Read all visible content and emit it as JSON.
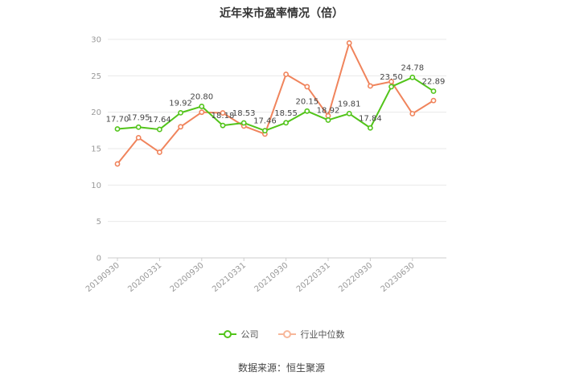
{
  "chart_data": {
    "type": "line",
    "title": "近年来市盈率情况（倍）",
    "x_tick_labels": [
      "20190930",
      "20200331",
      "20200930",
      "20210331",
      "20210930",
      "20220331",
      "20220930",
      "20230630"
    ],
    "ylim": [
      0,
      30
    ],
    "yticks": [
      0,
      5,
      10,
      15,
      20,
      25,
      30
    ],
    "grid": true,
    "legend_position": "bottom",
    "series": [
      {
        "name": "公司",
        "color": "#52c41a",
        "values": [
          17.7,
          17.95,
          17.64,
          19.92,
          20.8,
          18.18,
          18.53,
          17.46,
          18.55,
          20.15,
          18.92,
          19.81,
          17.84,
          23.5,
          24.78,
          22.89
        ],
        "labels": [
          "17.70",
          "17.95",
          "17.64",
          "19.92",
          "20.80",
          "18.18",
          "18.53",
          "17.46",
          "18.55",
          "20.15",
          "18.92",
          "19.81",
          "17.84",
          "23.50",
          "24.78",
          "22.89"
        ]
      },
      {
        "name": "行业中位数",
        "color": "#f0845c",
        "values": [
          12.9,
          16.5,
          14.5,
          18.0,
          20.0,
          19.9,
          18.1,
          17.0,
          25.2,
          23.5,
          19.5,
          29.5,
          23.6,
          24.2,
          19.8,
          21.6
        ]
      }
    ]
  },
  "legend": {
    "company": "公司",
    "industry": "行业中位数"
  },
  "source": "数据来源：恒生聚源"
}
